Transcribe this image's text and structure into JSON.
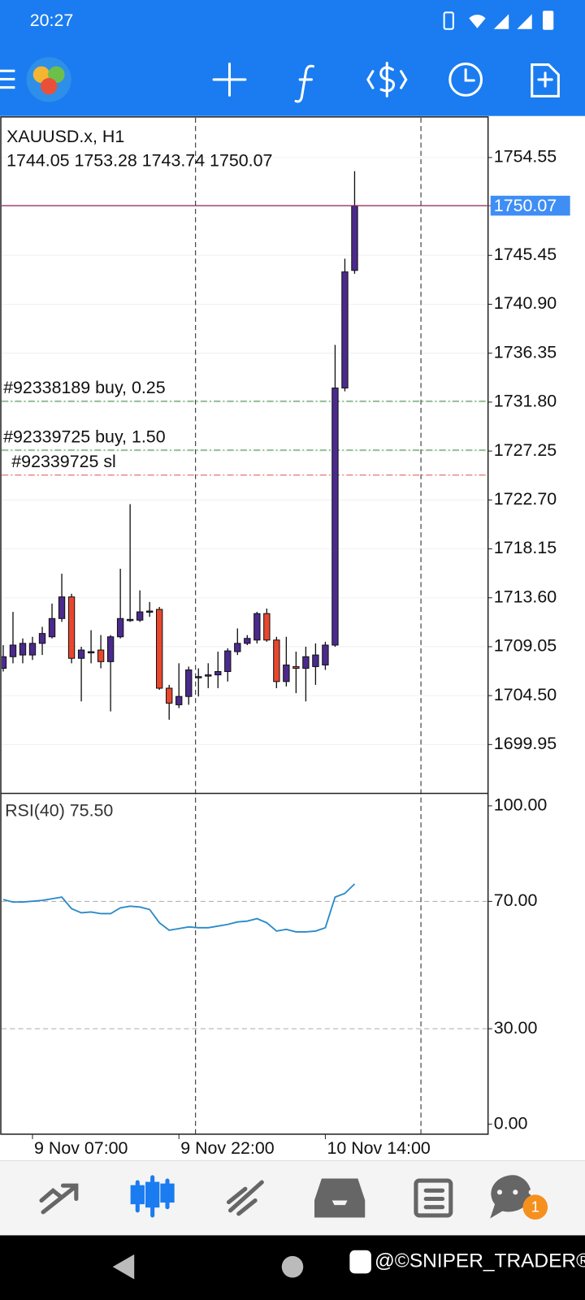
{
  "status_bar": {
    "time": "20:27"
  },
  "chart_data": [
    {
      "type": "candlestick",
      "title": "XAUUSD.x, H1",
      "info": "1744.05 1753.28 1743.74 1750.07",
      "categories": [
        null,
        null,
        null,
        "9 Nov 07:00",
        null,
        null,
        null,
        null,
        null,
        null,
        null,
        null,
        null,
        null,
        null,
        null,
        null,
        null,
        "9 Nov 22:00",
        null,
        null,
        null,
        null,
        null,
        null,
        null,
        null,
        null,
        null,
        null,
        null,
        null,
        null,
        "10 Nov 14:00",
        null,
        null,
        null
      ],
      "open": [
        1707.04,
        1708.12,
        1708.28,
        1708.28,
        1709.36,
        1709.97,
        1711.67,
        1713.68,
        1707.97,
        1708.59,
        1708.74,
        1707.66,
        1709.97,
        1711.59,
        1711.52,
        1712.37,
        1712.52,
        1705.19,
        1703.65,
        1704.42,
        1706.27,
        1706.43,
        1706.43,
        1706.74,
        1708.59,
        1709.36,
        1709.67,
        1712.13,
        1709.67,
        1705.81,
        1707.2,
        1707.04,
        1707.2,
        1707.35,
        1709.2,
        1733.11,
        1744.05
      ],
      "high": [
        1709.2,
        1712.29,
        1709.82,
        1709.97,
        1710.9,
        1713.06,
        1715.84,
        1713.98,
        1709.05,
        1710.59,
        1710.13,
        1710.13,
        1716.3,
        1722.31,
        1714.29,
        1713.21,
        1712.75,
        1705.5,
        1707.51,
        1707.2,
        1707.04,
        1707.51,
        1708.59,
        1708.9,
        1710.75,
        1710.13,
        1712.29,
        1712.6,
        1709.97,
        1709.97,
        1708.59,
        1709.05,
        1709.36,
        1709.51,
        1737.12,
        1745.14,
        1753.28
      ],
      "low": [
        1706.74,
        1707.51,
        1707.51,
        1707.82,
        1708.28,
        1709.82,
        1711.36,
        1707.51,
        1703.96,
        1707.51,
        1707.04,
        1703.03,
        1709.82,
        1711.36,
        1711.36,
        1711.83,
        1705.04,
        1702.26,
        1703.34,
        1703.65,
        1704.42,
        1705.19,
        1705.19,
        1705.81,
        1708.28,
        1709.2,
        1709.36,
        1709.51,
        1705.19,
        1705.35,
        1704.73,
        1703.96,
        1705.5,
        1706.89,
        1709.05,
        1732.8,
        1743.74
      ],
      "close": [
        1708.12,
        1709.2,
        1709.36,
        1709.36,
        1710.28,
        1711.67,
        1713.68,
        1707.97,
        1708.74,
        1708.59,
        1707.66,
        1709.97,
        1711.67,
        1711.59,
        1712.29,
        1712.37,
        1705.19,
        1703.8,
        1704.42,
        1706.89,
        1706.27,
        1706.43,
        1706.74,
        1708.66,
        1709.36,
        1709.82,
        1712.13,
        1709.67,
        1705.81,
        1707.35,
        1707.04,
        1708.12,
        1708.28,
        1709.2,
        1733.11,
        1743.91,
        1750.07
      ],
      "up_color": "#4b2a8c",
      "down_color": "#e8472e",
      "ylim": [
        1695.48,
        1758.25
      ],
      "yticks": [
        1754.55,
        1745.45,
        {
          "value": 1740.9,
          "label": "1740.90"
        },
        1736.35,
        {
          "value": 1731.8,
          "label": "1731.80"
        },
        1727.25,
        {
          "value": 1722.7,
          "label": "1722.70"
        },
        1718.15,
        {
          "value": 1713.6,
          "label": "1713.60"
        },
        1709.05,
        {
          "value": 1704.5,
          "label": "1704.50"
        },
        1699.95
      ],
      "grid": true,
      "current_price": 1750.07,
      "levels": [
        {
          "label": "#92338189 buy, 0.25",
          "value": 1731.88,
          "color": "#3a8a3a"
        },
        {
          "label": "#92339725 buy, 1.50",
          "value": 1727.33,
          "color": "#3a8a3a"
        },
        {
          "label": "#92339725 sl",
          "value": 1725.01,
          "color": "#d9534f"
        }
      ]
    },
    {
      "type": "line",
      "title": "RSI(40) 75.50",
      "values": [
        70.57,
        69.79,
        69.79,
        70.05,
        70.31,
        70.83,
        71.35,
        67.71,
        66.41,
        66.67,
        66.15,
        66.15,
        67.97,
        68.49,
        68.23,
        67.45,
        63.28,
        60.94,
        61.46,
        61.98,
        61.72,
        61.72,
        62.24,
        62.76,
        63.54,
        63.8,
        64.58,
        63.28,
        60.68,
        61.2,
        60.42,
        60.42,
        60.68,
        61.72,
        71.35,
        72.5,
        75.5
      ],
      "color": "#2a8ac8",
      "ylim": [
        -3.13,
        103.65
      ],
      "yticks": [
        {
          "value": 100,
          "label": "100.00"
        },
        {
          "value": 70,
          "label": "70.00"
        },
        {
          "value": 30,
          "label": "30.00"
        },
        {
          "value": 0,
          "label": "0.00"
        }
      ],
      "levels": [
        70,
        30
      ]
    }
  ],
  "bottom_nav": {
    "chat_badge": "1"
  },
  "watermark": "@©SNIPER_TRADER®"
}
